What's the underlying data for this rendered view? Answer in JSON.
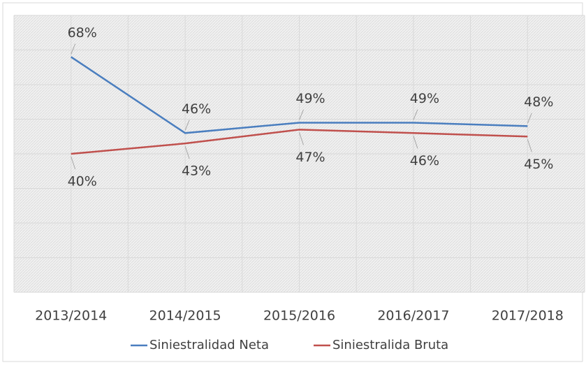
{
  "chart_data": {
    "type": "line",
    "categories": [
      "2013/2014",
      "2014/2015",
      "2015/2016",
      "2016/2017",
      "2017/2018"
    ],
    "series": [
      {
        "name": "Siniestralidad Neta",
        "color": "#4a7ebf",
        "values": [
          68,
          46,
          49,
          49,
          48
        ],
        "value_labels": [
          "68%",
          "46%",
          "49%",
          "49%",
          "48%"
        ]
      },
      {
        "name": "Siniestralida Bruta",
        "color": "#c0504d",
        "values": [
          40,
          43,
          47,
          46,
          45
        ],
        "value_labels": [
          "40%",
          "43%",
          "47%",
          "46%",
          "45%"
        ]
      }
    ],
    "ylim": [
      0,
      80
    ],
    "yticks": [
      0,
      10,
      20,
      30,
      40,
      50,
      60,
      70,
      80
    ],
    "grid": true,
    "legend": "bottom"
  }
}
